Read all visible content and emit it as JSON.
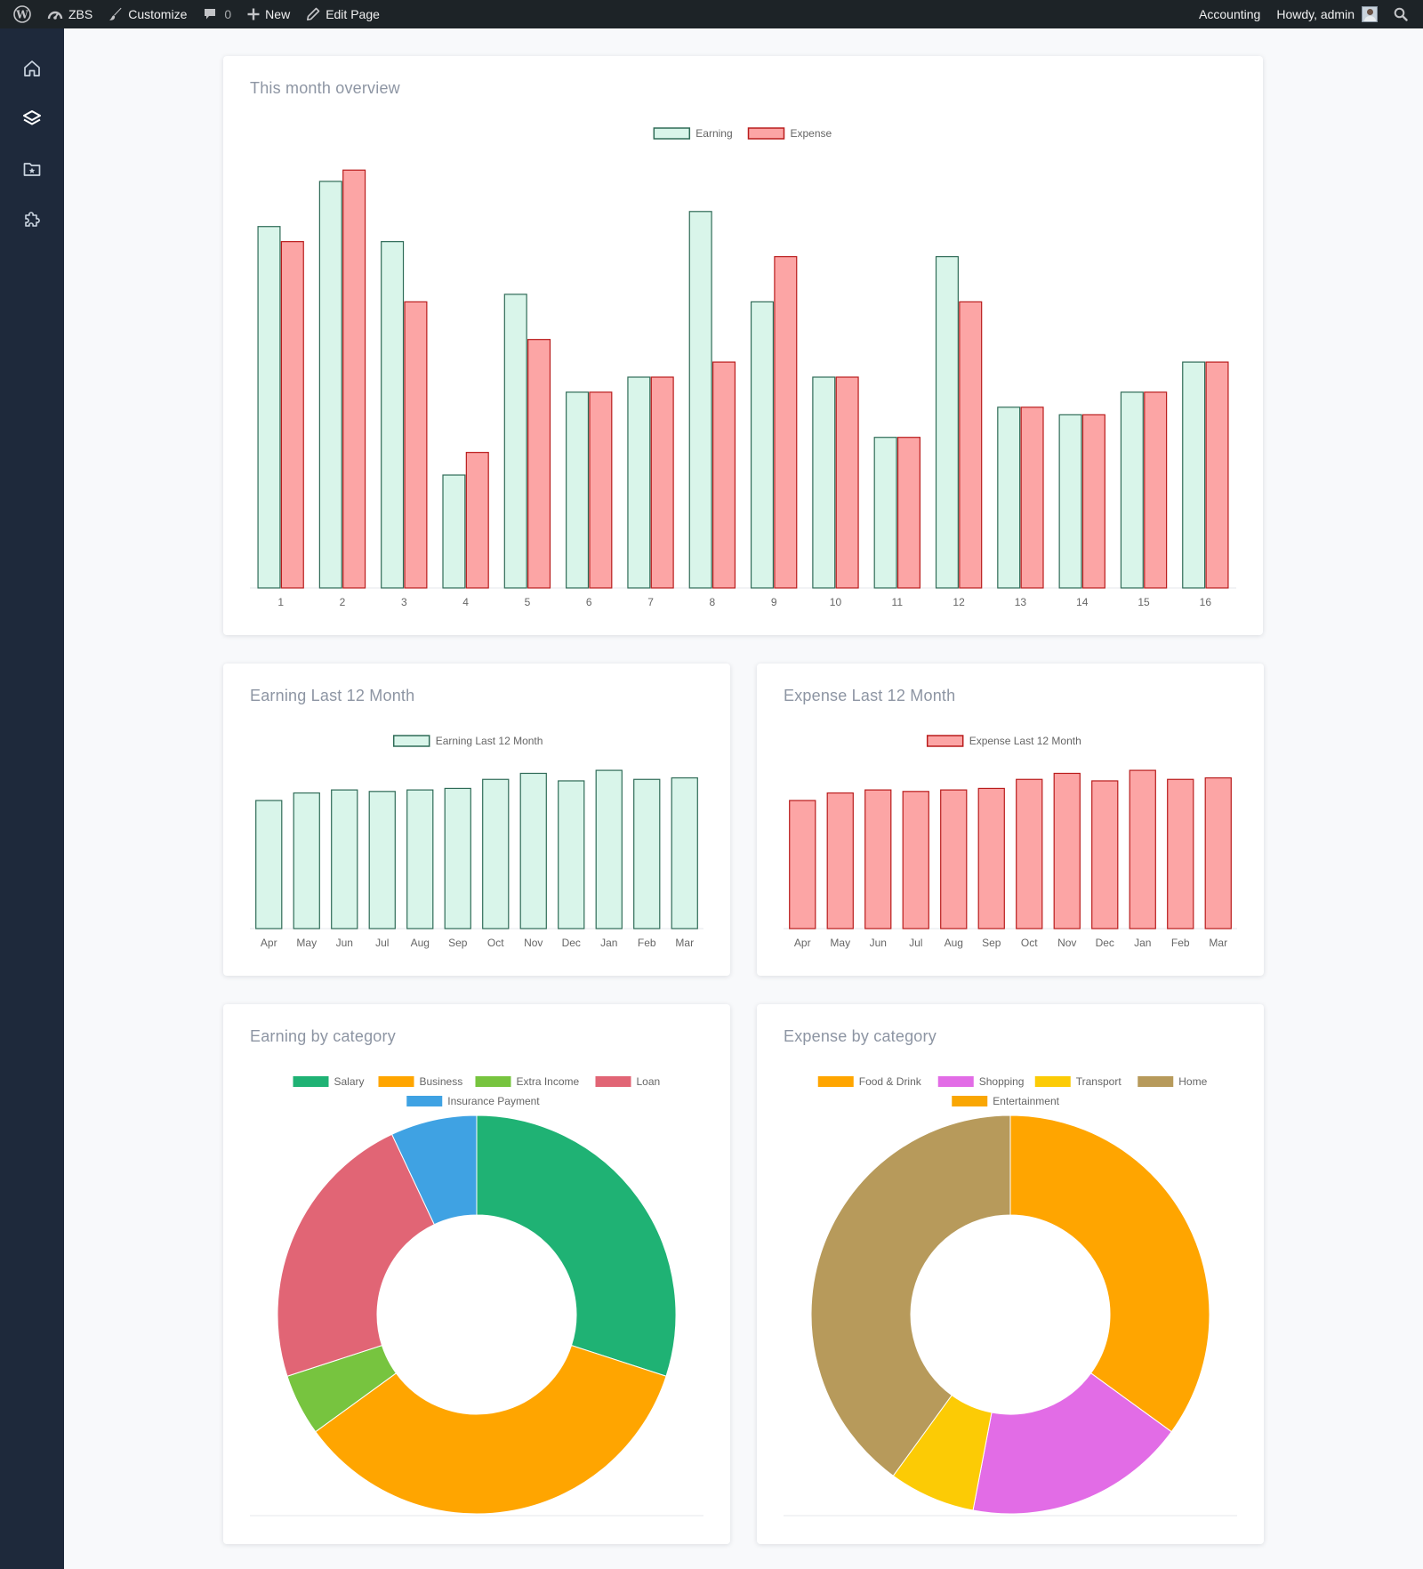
{
  "adminbar": {
    "site_name": "ZBS",
    "customize": "Customize",
    "comments_count": "0",
    "new": "New",
    "edit_page": "Edit Page",
    "accounting": "Accounting",
    "howdy": "Howdy, admin"
  },
  "sidebar": {
    "items": [
      {
        "icon": "home-icon"
      },
      {
        "icon": "layers-icon"
      },
      {
        "icon": "folder-star-icon"
      },
      {
        "icon": "puzzle-icon"
      }
    ]
  },
  "colors": {
    "earning_fill": "#d9f5ea",
    "earning_stroke": "#2f6b57",
    "expense_fill": "#fca5a5",
    "expense_stroke": "#b91c1c"
  },
  "overview": {
    "title": "This month overview"
  },
  "earning12": {
    "title": "Earning Last 12 Month"
  },
  "expense12": {
    "title": "Expense Last 12 Month"
  },
  "earningcat": {
    "title": "Earning by category"
  },
  "expensecat": {
    "title": "Expense by category"
  },
  "chart_data": [
    {
      "id": "overview",
      "type": "bar",
      "categories": [
        "1",
        "2",
        "3",
        "4",
        "5",
        "6",
        "7",
        "8",
        "9",
        "10",
        "11",
        "12",
        "13",
        "14",
        "15",
        "16"
      ],
      "series": [
        {
          "name": "Earning",
          "values": [
            96,
            108,
            92,
            30,
            78,
            52,
            56,
            100,
            76,
            56,
            40,
            88,
            48,
            46,
            52,
            60
          ]
        },
        {
          "name": "Expense",
          "values": [
            92,
            111,
            76,
            36,
            66,
            52,
            56,
            60,
            88,
            56,
            40,
            76,
            48,
            46,
            52,
            60
          ]
        }
      ],
      "ylim": [
        0,
        112
      ],
      "legend": "top-center",
      "grid": false
    },
    {
      "id": "earning12",
      "type": "bar",
      "categories": [
        "Apr",
        "May",
        "Jun",
        "Jul",
        "Aug",
        "Sep",
        "Oct",
        "Nov",
        "Dec",
        "Jan",
        "Feb",
        "Mar"
      ],
      "series": [
        {
          "name": "Earning Last 12 Month",
          "values": [
            85,
            90,
            92,
            91,
            92,
            93,
            99,
            103,
            98,
            105,
            99,
            100
          ]
        }
      ],
      "ylim": [
        0,
        108
      ],
      "legend": "top-center",
      "grid": false
    },
    {
      "id": "expense12",
      "type": "bar",
      "categories": [
        "Apr",
        "May",
        "Jun",
        "Jul",
        "Aug",
        "Sep",
        "Oct",
        "Nov",
        "Dec",
        "Jan",
        "Feb",
        "Mar"
      ],
      "series": [
        {
          "name": "Expense Last 12 Month",
          "values": [
            85,
            90,
            92,
            91,
            92,
            93,
            99,
            103,
            98,
            105,
            99,
            100
          ]
        }
      ],
      "ylim": [
        0,
        108
      ],
      "legend": "top-center",
      "grid": false
    },
    {
      "id": "earningcat",
      "type": "pie",
      "labels": [
        "Salary",
        "Business",
        "Extra Income",
        "Loan",
        "Insurance Payment"
      ],
      "values": [
        30,
        35,
        5,
        23,
        7
      ],
      "colors": [
        "#1fb274",
        "#ffa500",
        "#77c43f",
        "#e16575",
        "#3fa2e3"
      ],
      "legend": "top-center"
    },
    {
      "id": "expensecat",
      "type": "pie",
      "labels": [
        "Food & Drink",
        "Shopping",
        "Transport",
        "Home",
        "Entertainment"
      ],
      "values": [
        35,
        18,
        7,
        40,
        0
      ],
      "colors": [
        "#ffa500",
        "#e26ce6",
        "#fccb05",
        "#b79a5b",
        "#f9a603"
      ],
      "legend": "top-center"
    }
  ]
}
